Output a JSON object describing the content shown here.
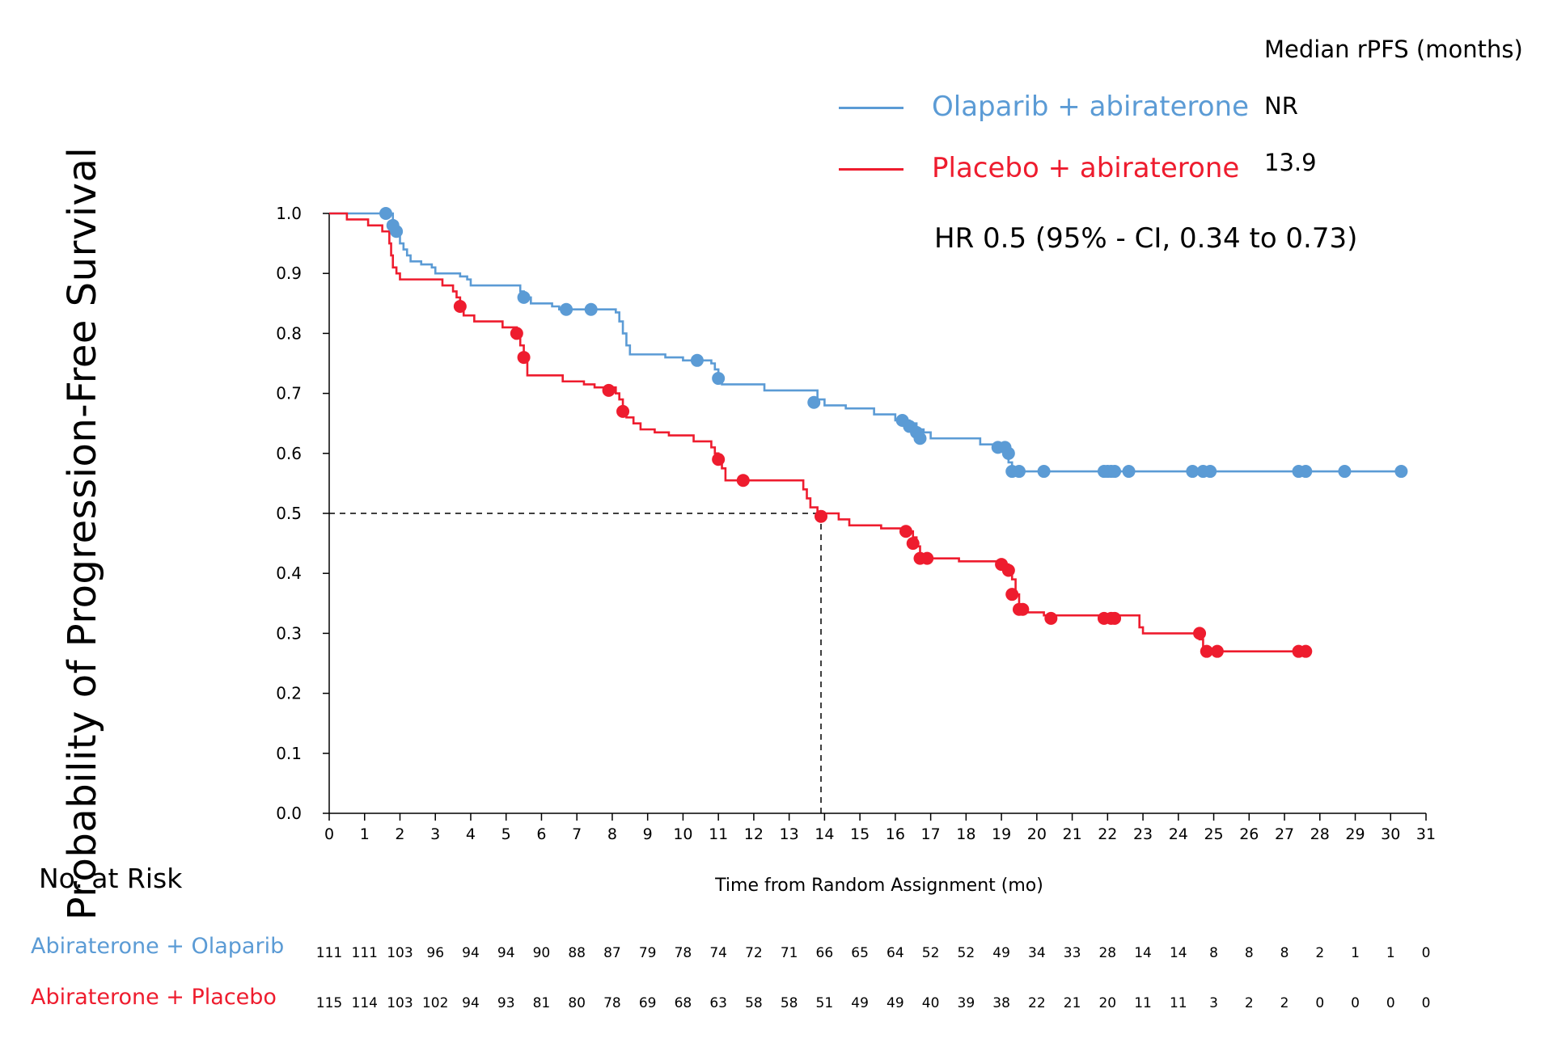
{
  "chart_data": {
    "type": "line",
    "subtype": "kaplan-meier",
    "ylabel": "Probability of Progression-Free Survival",
    "xlabel": "Time from Random Assignment (mo)",
    "xlim": [
      0,
      31
    ],
    "ylim": [
      0,
      1.0
    ],
    "x_ticks": [
      "0",
      "1",
      "2",
      "3",
      "4",
      "5",
      "6",
      "7",
      "8",
      "9",
      "10",
      "11",
      "12",
      "13",
      "14",
      "15",
      "16",
      "17",
      "18",
      "19",
      "20",
      "21",
      "22",
      "23",
      "24",
      "25",
      "26",
      "27",
      "28",
      "29",
      "30",
      "31"
    ],
    "y_ticks": [
      "0.0",
      "0.1",
      "0.2",
      "0.3",
      "0.4",
      "0.5",
      "0.6",
      "0.7",
      "0.8",
      "0.9",
      "1.0"
    ],
    "grid": false,
    "legend_title": "Median rPFS (months)",
    "legend_position": "top-right",
    "annotation": "HR 0.5 (95% - CI, 0.34 to 0.73)",
    "median_reference": {
      "x": 13.9,
      "y": 0.5
    },
    "series": [
      {
        "name": "Olaparib + abiraterone",
        "median_label": "NR",
        "color": "#5b9bd5",
        "steps": [
          [
            0,
            1.0
          ],
          [
            1.6,
            1.0
          ],
          [
            1.8,
            0.98
          ],
          [
            1.9,
            0.97
          ],
          [
            2.0,
            0.95
          ],
          [
            2.1,
            0.94
          ],
          [
            2.2,
            0.93
          ],
          [
            2.3,
            0.92
          ],
          [
            2.6,
            0.915
          ],
          [
            2.9,
            0.91
          ],
          [
            3.0,
            0.9
          ],
          [
            3.7,
            0.895
          ],
          [
            3.9,
            0.89
          ],
          [
            4.0,
            0.88
          ],
          [
            5.4,
            0.87
          ],
          [
            5.5,
            0.86
          ],
          [
            5.7,
            0.85
          ],
          [
            6.3,
            0.845
          ],
          [
            6.5,
            0.84
          ],
          [
            8.1,
            0.835
          ],
          [
            8.2,
            0.82
          ],
          [
            8.3,
            0.8
          ],
          [
            8.4,
            0.78
          ],
          [
            8.5,
            0.765
          ],
          [
            9.5,
            0.76
          ],
          [
            10.0,
            0.755
          ],
          [
            10.8,
            0.75
          ],
          [
            10.9,
            0.74
          ],
          [
            11.0,
            0.72
          ],
          [
            11.1,
            0.715
          ],
          [
            12.3,
            0.705
          ],
          [
            13.8,
            0.69
          ],
          [
            14.0,
            0.68
          ],
          [
            14.6,
            0.675
          ],
          [
            15.4,
            0.665
          ],
          [
            16.0,
            0.655
          ],
          [
            16.4,
            0.65
          ],
          [
            16.6,
            0.64
          ],
          [
            16.8,
            0.635
          ],
          [
            17.0,
            0.625
          ],
          [
            18.4,
            0.615
          ],
          [
            19.0,
            0.61
          ],
          [
            19.1,
            0.6
          ],
          [
            19.2,
            0.585
          ],
          [
            19.3,
            0.57
          ],
          [
            30.3,
            0.57
          ]
        ],
        "censored": [
          [
            1.6,
            1.0
          ],
          [
            1.8,
            0.98
          ],
          [
            1.9,
            0.97
          ],
          [
            5.5,
            0.86
          ],
          [
            6.7,
            0.84
          ],
          [
            7.4,
            0.84
          ],
          [
            10.4,
            0.755
          ],
          [
            11.0,
            0.725
          ],
          [
            13.7,
            0.685
          ],
          [
            16.2,
            0.655
          ],
          [
            16.4,
            0.645
          ],
          [
            16.6,
            0.635
          ],
          [
            16.7,
            0.625
          ],
          [
            18.9,
            0.61
          ],
          [
            19.1,
            0.61
          ],
          [
            19.2,
            0.6
          ],
          [
            19.3,
            0.57
          ],
          [
            19.5,
            0.57
          ],
          [
            20.2,
            0.57
          ],
          [
            21.9,
            0.57
          ],
          [
            22.0,
            0.57
          ],
          [
            22.1,
            0.57
          ],
          [
            22.2,
            0.57
          ],
          [
            22.6,
            0.57
          ],
          [
            24.4,
            0.57
          ],
          [
            24.7,
            0.57
          ],
          [
            24.9,
            0.57
          ],
          [
            27.4,
            0.57
          ],
          [
            27.6,
            0.57
          ],
          [
            28.7,
            0.57
          ],
          [
            30.3,
            0.57
          ]
        ],
        "at_risk_label": "Abiraterone + Olaparib",
        "at_risk": [
          111,
          111,
          103,
          96,
          94,
          94,
          90,
          88,
          87,
          79,
          78,
          74,
          72,
          71,
          66,
          65,
          64,
          52,
          52,
          49,
          34,
          33,
          28,
          14,
          14,
          8,
          8,
          8,
          2,
          1,
          1,
          0
        ]
      },
      {
        "name": "Placebo + abiraterone",
        "median_label": "13.9",
        "color": "#ee1c2e",
        "steps": [
          [
            0,
            1.0
          ],
          [
            0.5,
            0.99
          ],
          [
            1.1,
            0.98
          ],
          [
            1.5,
            0.97
          ],
          [
            1.7,
            0.95
          ],
          [
            1.75,
            0.93
          ],
          [
            1.8,
            0.91
          ],
          [
            1.9,
            0.9
          ],
          [
            2.0,
            0.89
          ],
          [
            3.2,
            0.88
          ],
          [
            3.5,
            0.87
          ],
          [
            3.6,
            0.86
          ],
          [
            3.7,
            0.845
          ],
          [
            3.8,
            0.83
          ],
          [
            4.1,
            0.82
          ],
          [
            4.9,
            0.81
          ],
          [
            5.3,
            0.8
          ],
          [
            5.4,
            0.78
          ],
          [
            5.5,
            0.76
          ],
          [
            5.6,
            0.73
          ],
          [
            6.6,
            0.72
          ],
          [
            7.2,
            0.715
          ],
          [
            7.5,
            0.71
          ],
          [
            8.1,
            0.7
          ],
          [
            8.2,
            0.69
          ],
          [
            8.3,
            0.675
          ],
          [
            8.4,
            0.66
          ],
          [
            8.6,
            0.65
          ],
          [
            8.8,
            0.64
          ],
          [
            9.2,
            0.635
          ],
          [
            9.6,
            0.63
          ],
          [
            10.3,
            0.62
          ],
          [
            10.8,
            0.61
          ],
          [
            10.9,
            0.6
          ],
          [
            11.0,
            0.59
          ],
          [
            11.1,
            0.575
          ],
          [
            11.2,
            0.555
          ],
          [
            13.4,
            0.54
          ],
          [
            13.5,
            0.525
          ],
          [
            13.6,
            0.51
          ],
          [
            13.8,
            0.5
          ],
          [
            14.4,
            0.49
          ],
          [
            14.7,
            0.48
          ],
          [
            15.6,
            0.475
          ],
          [
            16.3,
            0.47
          ],
          [
            16.5,
            0.46
          ],
          [
            16.6,
            0.445
          ],
          [
            16.7,
            0.43
          ],
          [
            16.9,
            0.425
          ],
          [
            17.8,
            0.42
          ],
          [
            19.0,
            0.415
          ],
          [
            19.2,
            0.405
          ],
          [
            19.3,
            0.39
          ],
          [
            19.4,
            0.365
          ],
          [
            19.5,
            0.345
          ],
          [
            19.7,
            0.335
          ],
          [
            20.2,
            0.33
          ],
          [
            22.9,
            0.31
          ],
          [
            23.0,
            0.3
          ],
          [
            24.6,
            0.29
          ],
          [
            24.7,
            0.275
          ],
          [
            24.8,
            0.27
          ],
          [
            27.5,
            0.27
          ]
        ],
        "censored": [
          [
            3.7,
            0.845
          ],
          [
            5.3,
            0.8
          ],
          [
            5.5,
            0.76
          ],
          [
            7.9,
            0.705
          ],
          [
            8.3,
            0.67
          ],
          [
            11.0,
            0.59
          ],
          [
            11.7,
            0.555
          ],
          [
            13.9,
            0.495
          ],
          [
            16.3,
            0.47
          ],
          [
            16.5,
            0.45
          ],
          [
            16.7,
            0.425
          ],
          [
            16.9,
            0.425
          ],
          [
            19.0,
            0.415
          ],
          [
            19.2,
            0.405
          ],
          [
            19.3,
            0.365
          ],
          [
            19.5,
            0.34
          ],
          [
            19.6,
            0.34
          ],
          [
            20.4,
            0.325
          ],
          [
            21.9,
            0.325
          ],
          [
            22.1,
            0.325
          ],
          [
            22.2,
            0.325
          ],
          [
            24.6,
            0.3
          ],
          [
            24.8,
            0.27
          ],
          [
            25.1,
            0.27
          ],
          [
            27.4,
            0.27
          ],
          [
            27.6,
            0.27
          ]
        ],
        "at_risk_label": "Abiraterone + Placebo",
        "at_risk": [
          115,
          114,
          103,
          102,
          94,
          93,
          81,
          80,
          78,
          69,
          68,
          63,
          58,
          58,
          51,
          49,
          49,
          40,
          39,
          38,
          22,
          21,
          20,
          11,
          11,
          3,
          2,
          2,
          0,
          0,
          0,
          0
        ]
      }
    ]
  },
  "risk_table": {
    "title": "No. at Risk"
  }
}
